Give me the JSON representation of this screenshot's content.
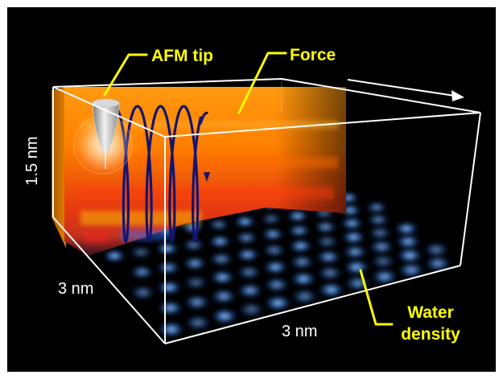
{
  "labels": {
    "afm_tip": "AFM tip",
    "force": "Force",
    "water_line1": "Water",
    "water_line2": "density",
    "height": "1.5 nm",
    "depth": "3 nm",
    "width": "3 nm"
  },
  "colors": {
    "background": "#000000",
    "callout_yellow": "#ffff00",
    "box_edge": "#ffffff",
    "helix": "#1a1a80",
    "force_orange": "#ff8a00",
    "force_red": "#e52010",
    "water_blue": "#2f7fe0"
  },
  "icons": [
    "afm-tip-icon",
    "scan-direction-arrow-icon",
    "helix-scan-path-icon"
  ]
}
